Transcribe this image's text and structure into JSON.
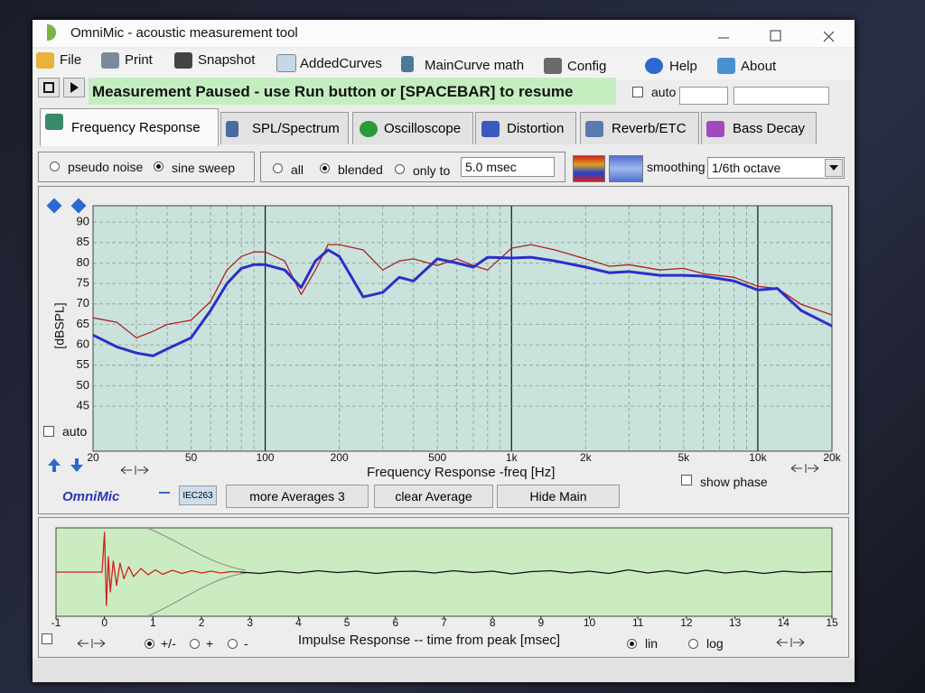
{
  "window": {
    "title": "OmniMic - acoustic measurement tool"
  },
  "menu": [
    "File",
    "Print",
    "Snapshot",
    "AddedCurves",
    "MainCurve math",
    "Config",
    "Help",
    "About"
  ],
  "status": {
    "message": "Measurement Paused - use Run button or [SPACEBAR] to resume",
    "auto_label": "auto"
  },
  "tabs": [
    "Frequency Response",
    "SPL/Spectrum",
    "Oscilloscope",
    "Distortion",
    "Reverb/ETC",
    "Bass Decay"
  ],
  "options": {
    "signal": [
      "pseudo noise",
      "sine sweep"
    ],
    "window": [
      "all",
      "blended",
      "only to"
    ],
    "window_time": "5.0 msec",
    "smoothing_label": "smoothing",
    "smoothing": "1/6th octave"
  },
  "frequency_chart": {
    "type": "line",
    "xlabel": "Frequency Response -freq [Hz]",
    "ylabel": "[dBSPL]",
    "xscale": "log",
    "xlim": [
      20,
      20000
    ],
    "xticks": [
      20,
      50,
      100,
      200,
      500,
      {
        "value": 1000,
        "label": "1k"
      },
      {
        "value": 2000,
        "label": "2k"
      },
      {
        "value": 5000,
        "label": "5k"
      },
      {
        "value": 10000,
        "label": "10k"
      },
      {
        "value": 20000,
        "label": "20k"
      }
    ],
    "x_minor_grid": [
      30,
      40,
      60,
      70,
      80,
      90,
      300,
      400,
      600,
      700,
      800,
      900,
      3000,
      4000,
      6000,
      7000,
      8000,
      9000
    ],
    "ylim": [
      34,
      94
    ],
    "yticks": [
      45,
      50,
      55,
      60,
      65,
      70,
      75,
      80,
      85,
      90
    ],
    "grid": true,
    "background": "#c9e3dc",
    "x": [
      20,
      25,
      30,
      35,
      40,
      50,
      60,
      70,
      80,
      90,
      100,
      120,
      140,
      160,
      180,
      200,
      250,
      300,
      350,
      400,
      500,
      600,
      700,
      800,
      1000,
      1200,
      1500,
      2000,
      2500,
      3000,
      4000,
      5000,
      6000,
      8000,
      10000,
      12000,
      15000,
      20000
    ],
    "series": [
      {
        "color": "#b02020",
        "width": 1.3,
        "values": [
          66.6,
          65.5,
          61.7,
          63.3,
          65,
          66,
          70.6,
          78.3,
          81.6,
          82.7,
          82.7,
          80.5,
          72.3,
          78.3,
          84.5,
          84.5,
          83.2,
          78.3,
          80.5,
          81,
          79.4,
          81,
          79.4,
          78.3,
          83.6,
          84.5,
          83.2,
          81,
          79.2,
          79.6,
          78.3,
          78.7,
          77.4,
          76.5,
          74.3,
          73.8,
          69.9,
          67.3
        ]
      },
      {
        "color": "#2b2fc8",
        "width": 3,
        "values": [
          62.4,
          59.5,
          58,
          57.3,
          59,
          61.7,
          68.4,
          75,
          78.7,
          79.6,
          79.6,
          78.3,
          74,
          80.5,
          83.2,
          81.6,
          71.7,
          72.8,
          76.5,
          75.6,
          81,
          80,
          79,
          81.4,
          81.2,
          81.4,
          80.5,
          79,
          77.6,
          77.9,
          77,
          77,
          76.8,
          75.6,
          73.4,
          73.8,
          68.4,
          64.6
        ]
      }
    ],
    "auto_label": "auto",
    "show_phase": "show phase"
  },
  "toolbar": {
    "brand": "OmniMic",
    "iec": "IEC263",
    "averages": "more Averages 3",
    "clear": "clear Average",
    "hide": "Hide Main"
  },
  "impulse_chart": {
    "type": "line",
    "xlabel": "Impulse Response  -- time from peak [msec]",
    "xlim": [
      -1,
      15
    ],
    "xticks": [
      -1,
      0,
      1,
      2,
      3,
      4,
      5,
      6,
      7,
      8,
      9,
      10,
      11,
      12,
      13,
      14,
      15
    ],
    "ylim": [
      -1,
      1
    ],
    "grid": false,
    "background": "#cbecc0",
    "series": [
      {
        "color": "#d02020",
        "width": 1.3,
        "x": [
          -1,
          -0.05,
          0,
          0.04,
          0.08,
          0.12,
          0.18,
          0.25,
          0.32,
          0.4,
          0.5,
          0.6,
          0.75,
          0.9,
          1.05,
          1.2,
          1.4,
          1.6,
          1.8,
          2.0,
          2.2,
          2.4,
          2.6,
          2.8
        ],
        "values": [
          0,
          0,
          0.9,
          -0.75,
          0.35,
          -0.45,
          0.25,
          -0.3,
          0.2,
          -0.15,
          0.12,
          -0.1,
          0.08,
          -0.06,
          0.05,
          -0.05,
          0.04,
          -0.03,
          0.03,
          -0.02,
          0.02,
          -0.02,
          0.01,
          0
        ]
      },
      {
        "color": "#111111",
        "width": 1.3,
        "x": [
          2.8,
          3.2,
          3.6,
          4.0,
          4.4,
          4.8,
          5.2,
          5.6,
          6.0,
          6.4,
          6.8,
          7.2,
          7.6,
          8.0,
          8.4,
          8.8,
          9.2,
          9.6,
          10.0,
          10.4,
          10.8,
          11.2,
          11.6,
          12.0,
          12.4,
          12.8,
          13.2,
          13.6,
          14.0,
          14.4,
          14.8,
          15
        ],
        "values": [
          0,
          -0.03,
          0.02,
          -0.02,
          0.03,
          -0.01,
          0.02,
          -0.03,
          0.01,
          0.02,
          -0.02,
          0.03,
          -0.01,
          0.02,
          -0.04,
          0.01,
          0.03,
          -0.02,
          0.02,
          -0.03,
          0.05,
          -0.02,
          0.03,
          -0.03,
          0.04,
          -0.02,
          0.02,
          -0.03,
          0.02,
          -0.01,
          0.01,
          0.01
        ]
      }
    ]
  },
  "impulse_options": {
    "polarity": [
      "+/-",
      "+",
      "-"
    ],
    "scale": [
      "lin",
      "log"
    ]
  }
}
